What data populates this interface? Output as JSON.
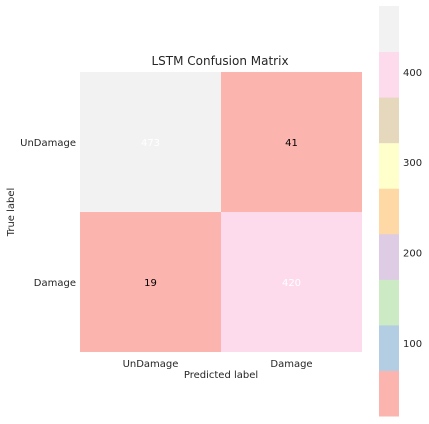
{
  "chart_data": {
    "type": "heatmap",
    "title": "LSTM Confusion Matrix",
    "xlabel": "Predicted label",
    "ylabel": "True label",
    "x_categories": [
      "UnDamage",
      "Damage"
    ],
    "y_categories": [
      "UnDamage",
      "Damage"
    ],
    "values": [
      [
        473,
        41
      ],
      [
        19,
        420
      ]
    ],
    "colormap": "Pastel1",
    "colorbar": {
      "range": [
        19,
        473
      ],
      "ticks": [
        100,
        200,
        300,
        400
      ],
      "colors": [
        "#fbb4ae",
        "#b3cde3",
        "#ccebc5",
        "#decbe4",
        "#fed9a6",
        "#ffffcc",
        "#e5d8bd",
        "#fddaec",
        "#f2f2f2"
      ]
    },
    "cell_text_colors": [
      [
        "#ffffff",
        "#000000"
      ],
      [
        "#000000",
        "#ffffff"
      ]
    ],
    "cell_colors": [
      [
        "#f2f2f2",
        "#fbb4ae"
      ],
      [
        "#fbb4ae",
        "#fddaec"
      ]
    ],
    "grid": false
  }
}
